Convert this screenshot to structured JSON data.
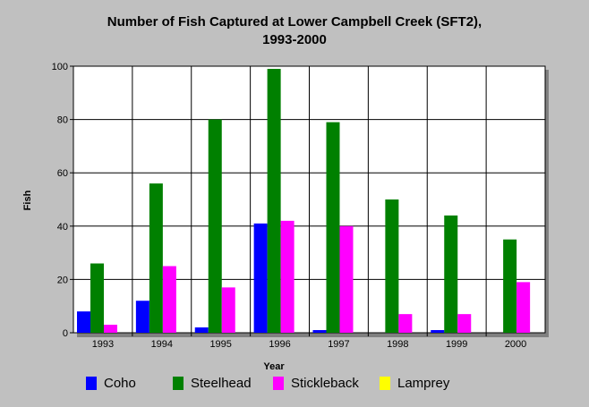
{
  "chart_data": {
    "type": "bar",
    "title_lines": [
      "Number of Fish Captured at Lower Campbell Creek (SFT2),",
      "1993-2000"
    ],
    "xlabel": "Year",
    "ylabel": "Fish",
    "ylim": [
      0,
      100
    ],
    "yticks": [
      "0",
      "20",
      "40",
      "60",
      "80",
      "100"
    ],
    "categories": [
      "1993",
      "1994",
      "1995",
      "1996",
      "1997",
      "1998",
      "1999",
      "2000"
    ],
    "series": [
      {
        "name": "Coho",
        "color": "#0000ff",
        "values": [
          8,
          12,
          2,
          41,
          1,
          0,
          1,
          0
        ]
      },
      {
        "name": "Steelhead",
        "color": "#008000",
        "values": [
          26,
          56,
          80,
          99,
          79,
          50,
          44,
          35
        ]
      },
      {
        "name": "Stickleback",
        "color": "#ff00ff",
        "values": [
          3,
          25,
          17,
          42,
          40,
          7,
          7,
          19
        ]
      },
      {
        "name": "Lamprey",
        "color": "#ffff00",
        "values": [
          0,
          0,
          0,
          0,
          0,
          0,
          0,
          0
        ]
      }
    ],
    "grid": true,
    "legend_position": "bottom"
  }
}
